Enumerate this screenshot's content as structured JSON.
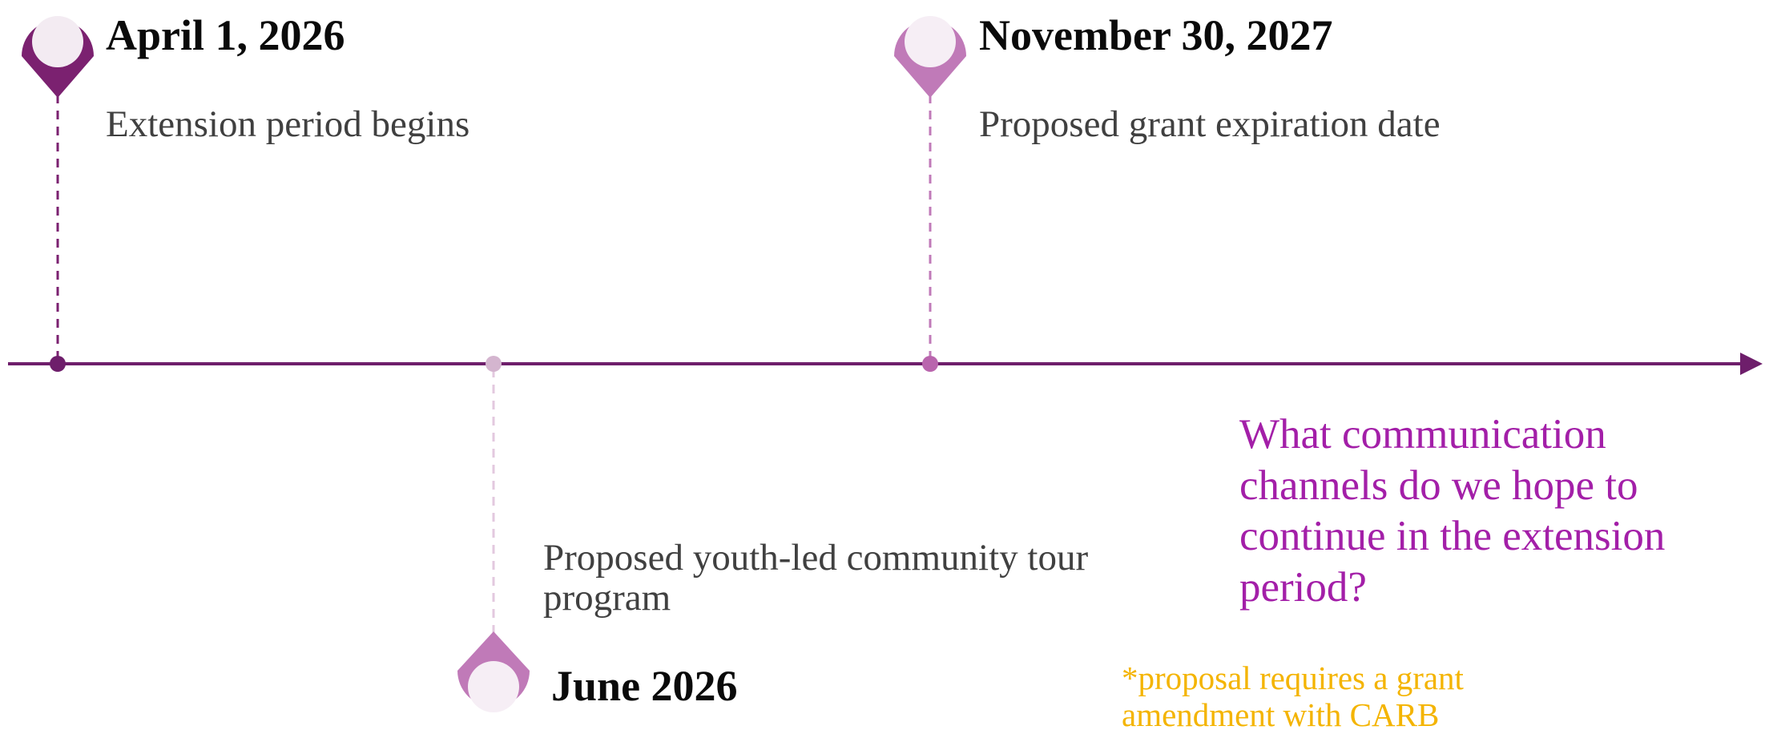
{
  "milestones": [
    {
      "date": "April 1, 2026",
      "description": "Extension period begins"
    },
    {
      "date": "November 30, 2027",
      "description": "Proposed grant expiration date"
    },
    {
      "date": "June 2026",
      "description": "Proposed youth-led community tour program"
    }
  ],
  "question": "What communication channels do we hope to continue in the extension period?",
  "note": "*proposal requires a grant amendment with CARB",
  "colors": {
    "axis": "#6e1e6b",
    "marker_dark": "#7b2170",
    "marker_medium": "#c07ab8",
    "marker_light": "#d4b5cf",
    "pin_fill": "#f6eef5",
    "question": "#a31fa8",
    "note": "#f4b400"
  }
}
